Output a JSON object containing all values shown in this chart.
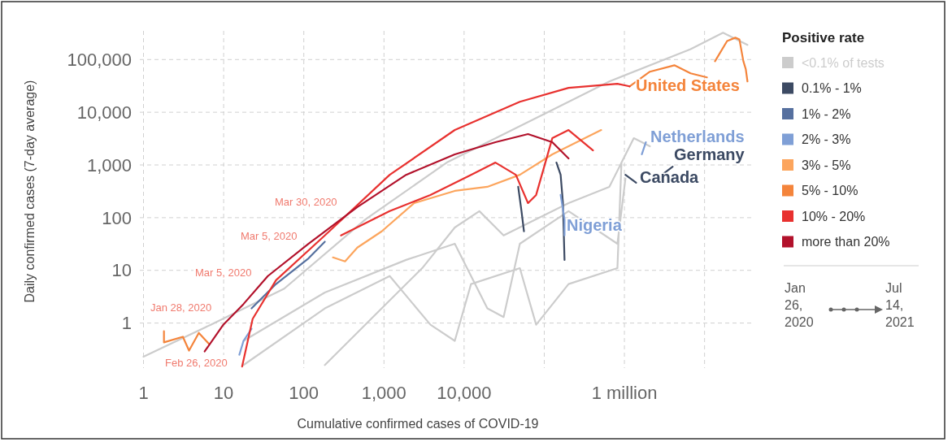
{
  "chart_data": {
    "type": "line",
    "xlabel": "Cumulative confirmed cases of COVID-19",
    "ylabel": "Daily confirmed cases (7-day average)",
    "legend_title": "Positive rate",
    "log": "xy",
    "grid": true,
    "legend": "right",
    "xlim": [
      0.9,
      40000000
    ],
    "xticks": [
      1,
      10,
      100,
      {
        "value": 1000,
        "label": "1,000"
      },
      {
        "value": 10000,
        "label": "10,000"
      },
      {
        "value": 100000,
        "label": null
      },
      {
        "value": 1000000,
        "label": "1 million"
      },
      {
        "value": 10000000,
        "label": null
      }
    ],
    "ylim": [
      0.14,
      350000
    ],
    "yticks": [
      1,
      10,
      100,
      {
        "value": 1000,
        "label": "1,000"
      },
      {
        "value": 10000,
        "label": "10,000"
      },
      {
        "value": 100000,
        "label": "100,000"
      }
    ],
    "series": [
      {
        "name": "<0.1% of tests",
        "color": "#cccccc",
        "x": [
          1,
          6.9,
          57,
          590,
          6070,
          62700,
          648000,
          6700000,
          17000000,
          34300000,
          null,
          17.7,
          183,
          1890,
          7650,
          19500,
          31100,
          49600,
          201000,
          818000,
          1030000,
          null,
          17.7,
          183,
          1180,
          3800,
          7650,
          12200,
          49600,
          79200,
          201000,
          818000,
          919000,
          null,
          183,
          937,
          3000,
          7650,
          15500,
          31100,
          201000,
          648000,
          1310000,
          2080000
        ],
        "values": [
          0.23,
          0.93,
          4.5,
          93,
          1110,
          6500,
          38400,
          158000,
          322000,
          189000,
          null,
          0.46,
          3.8,
          15.8,
          32,
          1.9,
          1.3,
          32,
          133,
          32,
          550,
          null,
          0.16,
          1.9,
          7.8,
          0.93,
          0.46,
          5.5,
          11,
          0.93,
          5.5,
          11,
          1110,
          null,
          0.16,
          1.9,
          11,
          65,
          133,
          46,
          189,
          385,
          3220,
          2260
        ]
      },
      {
        "name": "0.1% - 1%",
        "color": "#3c4a63",
        "x": [
          47300,
          52000,
          55800,
          null,
          142000,
          160000,
          171000,
          179000,
          null,
          2950000,
          4000000,
          null,
          1030000,
          1400000
        ],
        "values": [
          385,
          133,
          55,
          null,
          1110,
          650,
          189,
          15.8,
          null,
          650,
          930,
          null,
          650,
          460
        ]
      },
      {
        "name": "1% - 2%",
        "color": "#56709f",
        "x": [
          22.3,
          45,
          115,
          183
        ],
        "values": [
          1.9,
          5.5,
          17,
          35
        ]
      },
      {
        "name": "2% - 3%",
        "color": "#7f9fd6",
        "x": [
          1650000,
          1850000,
          null,
          160000,
          179000,
          179000,
          null,
          15.7,
          17.7,
          22.3
        ],
        "values": [
          1590,
          2700,
          null,
          270,
          93,
          46,
          null,
          0.25,
          0.46,
          0.78
        ]
      },
      {
        "name": "3% - 5%",
        "color": "#fca55d",
        "x": [
          231,
          327,
          465,
          937,
          2380,
          7650,
          19500,
          49600,
          126000,
          321000,
          513000
        ],
        "values": [
          17.6,
          14.8,
          27,
          55,
          189,
          322,
          385,
          650,
          1590,
          3220,
          4600
        ]
      },
      {
        "name": "5% - 10%",
        "color": "#f4843b",
        "x": [
          1.8,
          1.8,
          3.1,
          3.7,
          4.9,
          6.6,
          null,
          1160000,
          2080000,
          4200000,
          6700000,
          10700000,
          null,
          13500000,
          19100000,
          24200000,
          27200000,
          30500000,
          32700000,
          34300000
        ],
        "values": [
          0.7,
          0.43,
          0.55,
          0.3,
          0.65,
          0.4,
          null,
          31000,
          58900,
          77900,
          54700,
          45900,
          null,
          93000,
          225000,
          260000,
          242000,
          93000,
          65300,
          38400
        ]
      },
      {
        "name": "10% - 20%",
        "color": "#e8312f",
        "x": [
          17,
          23,
          45,
          183,
          1180,
          7650,
          49600,
          201000,
          818000,
          1160000,
          null,
          291,
          1180,
          3800,
          12200,
          24600,
          44200,
          62700,
          79200,
          126000,
          201000,
          406000
        ],
        "values": [
          0.15,
          1.2,
          6.5,
          46,
          650,
          4600,
          15800,
          29000,
          34600,
          31000,
          null,
          46,
          133,
          270,
          650,
          1110,
          650,
          189,
          270,
          3220,
          4600,
          1890
        ]
      },
      {
        "name": "more than 20%",
        "color": "#b2112b",
        "x": [
          5.8,
          9.9,
          17.7,
          35.6,
          115,
          465,
          1890,
          7650,
          24600,
          62700,
          126000,
          201000
        ],
        "values": [
          0.29,
          0.93,
          2.3,
          7.8,
          32,
          159,
          650,
          1590,
          2700,
          3850,
          2700,
          1330
        ]
      }
    ],
    "annotations": [
      "Jan 28, 2020",
      "Feb 26, 2020",
      "Mar 5, 2020",
      "Mar 5, 2020",
      "Mar 30, 2020",
      "United States",
      "Netherlands",
      "Germany",
      "Canada",
      "Nigeria",
      "Jan 26, 2020",
      "Jul 14, 2021"
    ]
  }
}
